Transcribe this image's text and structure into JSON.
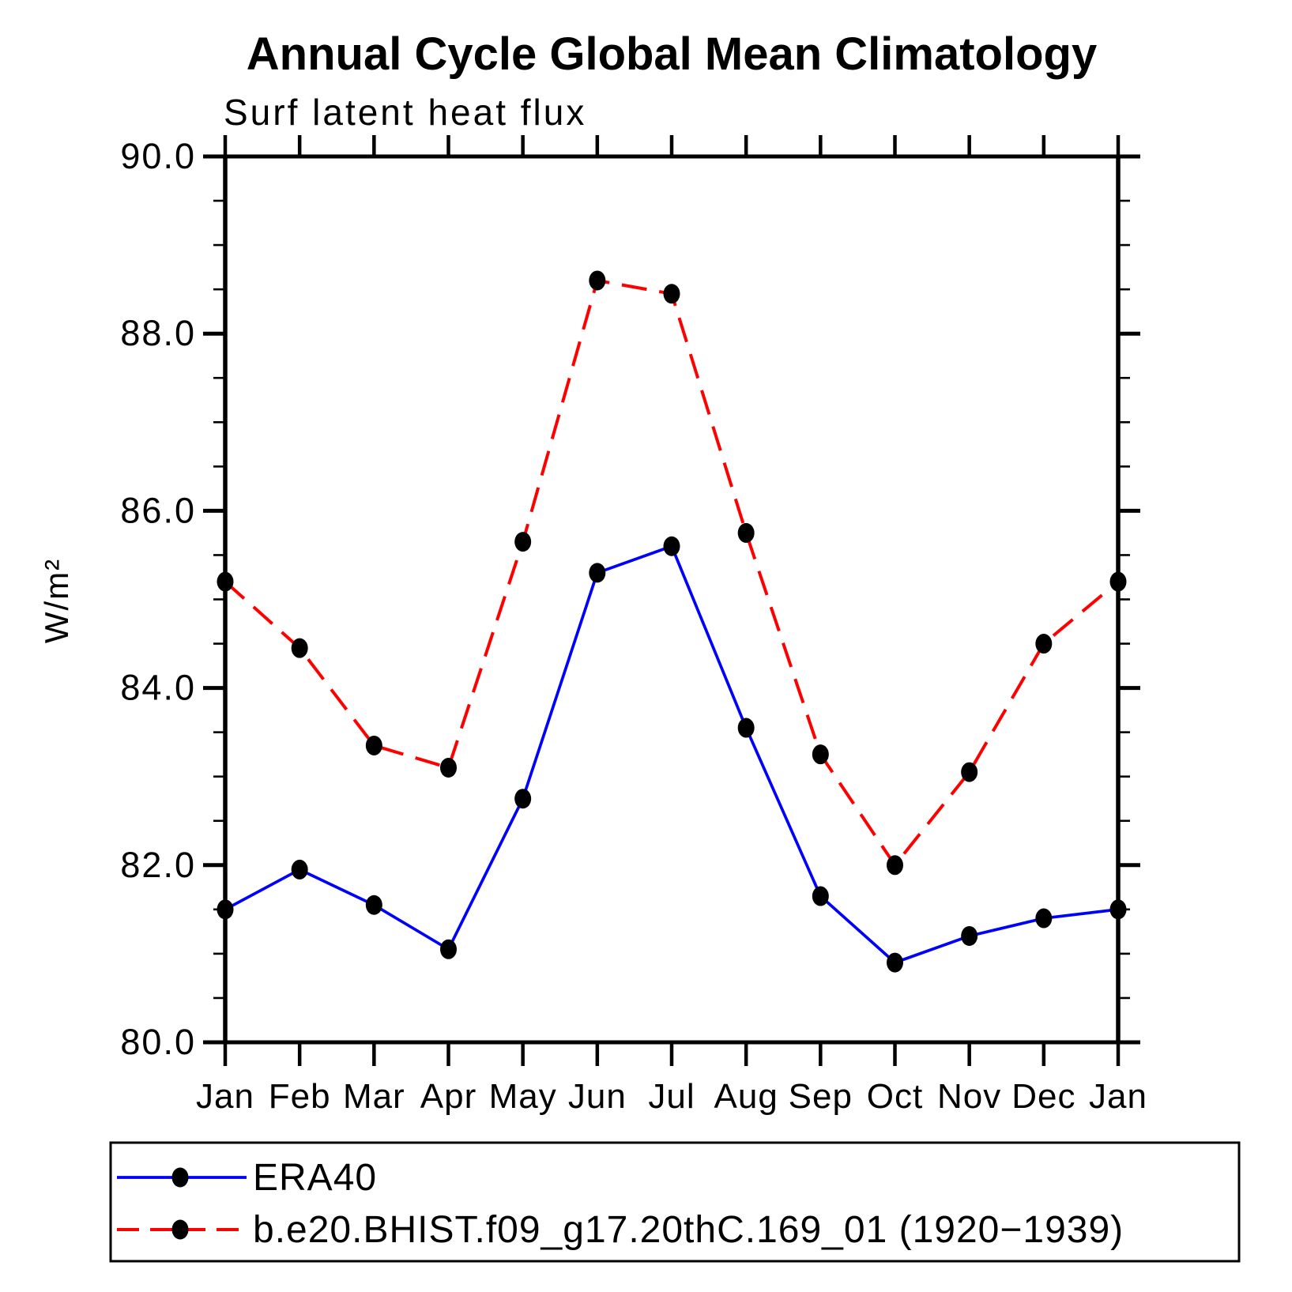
{
  "chart_data": {
    "type": "line",
    "title": "Annual Cycle Global Mean Climatology",
    "subtitle": "Surf latent heat flux",
    "ylabel": "W/m²",
    "xlabel": "",
    "categories": [
      "Jan",
      "Feb",
      "Mar",
      "Apr",
      "May",
      "Jun",
      "Jul",
      "Aug",
      "Sep",
      "Oct",
      "Nov",
      "Dec",
      "Jan"
    ],
    "series": [
      {
        "name": "ERA40",
        "color": "#0000ff",
        "line_style": "solid",
        "marker": "filled-circle",
        "marker_color": "#000000",
        "values": [
          81.5,
          81.95,
          81.55,
          81.05,
          82.75,
          85.3,
          85.6,
          83.55,
          81.65,
          80.9,
          81.2,
          81.4,
          81.5
        ]
      },
      {
        "name": "b.e20.BHIST.f09_g17.20thC.169_01 (1920−1939)",
        "color": "#ff0000",
        "line_style": "dashed",
        "marker": "filled-circle",
        "marker_color": "#000000",
        "values": [
          85.2,
          84.45,
          83.35,
          83.1,
          85.65,
          88.6,
          88.45,
          85.75,
          83.25,
          82.0,
          83.05,
          84.5,
          85.2
        ]
      }
    ],
    "ylim": [
      80.0,
      90.0
    ],
    "ytick_step": 2.0,
    "yminor_step": 0.5,
    "ytick_labels": [
      "80.0",
      "82.0",
      "84.0",
      "86.0",
      "88.0",
      "90.0"
    ],
    "grid": false,
    "legend_position": "bottom",
    "frame": "box-with-outward-ticks",
    "axis_color": "#000000"
  }
}
